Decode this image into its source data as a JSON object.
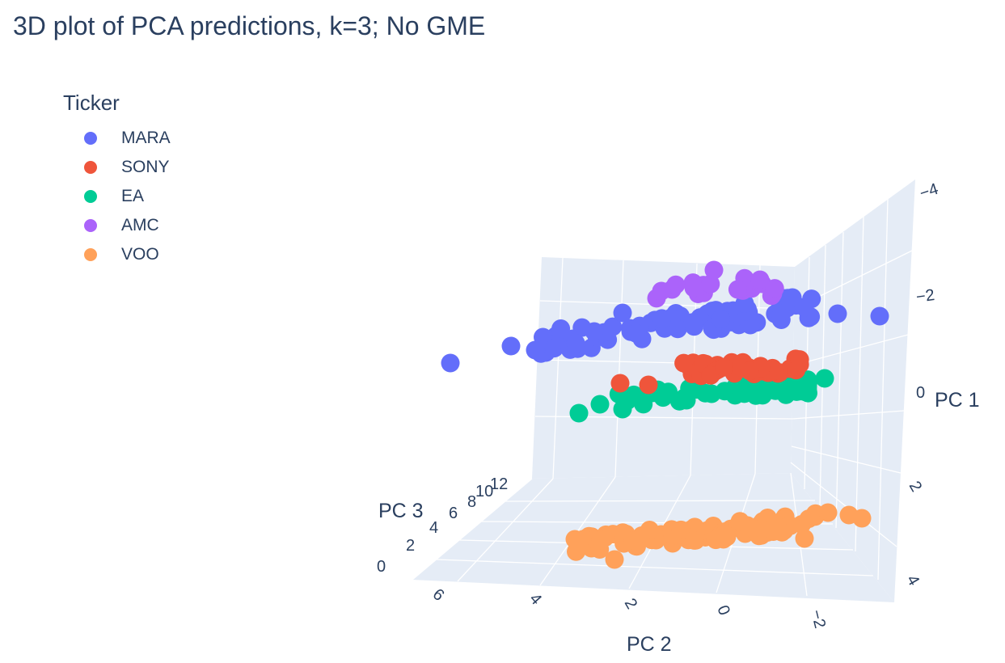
{
  "chart_data": {
    "type": "scatter",
    "title": "3D plot of PCA predictions, k=3; No GME",
    "legend_title": "Ticker",
    "legend_position": "top-left",
    "axes": {
      "x": {
        "label": "PC 1",
        "ticks": [
          -4,
          -2,
          0,
          2,
          4
        ],
        "tick_labels": [
          "−4",
          "−2",
          "0",
          "2",
          "4"
        ]
      },
      "y": {
        "label": "PC 2",
        "ticks": [
          6,
          4,
          2,
          0,
          -2
        ],
        "tick_labels": [
          "6",
          "4",
          "2",
          "0",
          "−2"
        ]
      },
      "z": {
        "label": "PC 3",
        "ticks": [
          0,
          2,
          4,
          6,
          8,
          10,
          12
        ],
        "tick_labels": [
          "0",
          "2",
          "4",
          "6",
          "8",
          "10",
          "12"
        ]
      }
    },
    "grid": true,
    "series": [
      {
        "name": "MARA",
        "color": "#636efa"
      },
      {
        "name": "SONY",
        "color": "#ef553b"
      },
      {
        "name": "EA",
        "color": "#00cc96"
      },
      {
        "name": "AMC",
        "color": "#ab63fa"
      },
      {
        "name": "VOO",
        "color": "#ffa15a"
      }
    ]
  }
}
